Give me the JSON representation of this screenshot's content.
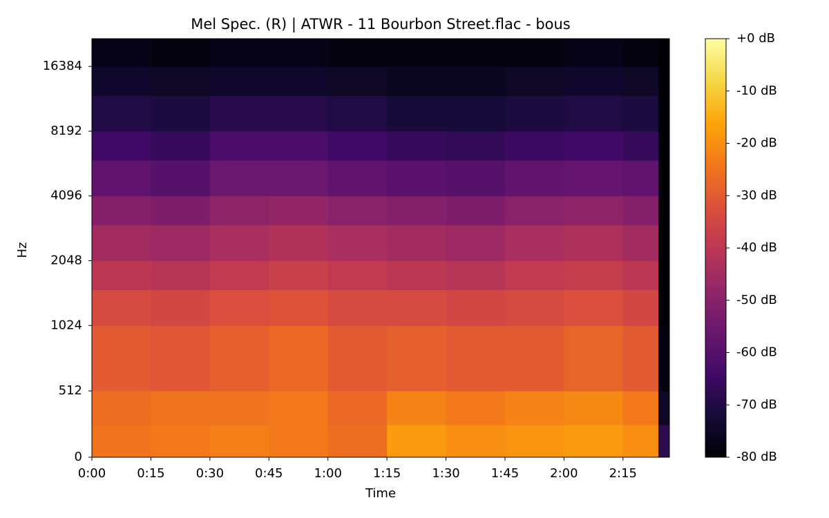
{
  "chart_data": {
    "type": "heatmap",
    "title": "Mel Spec. (R) | ATWR - 11 Bourbon Street.flac - bous",
    "x_label": "Time",
    "y_label": "Hz",
    "yscale": "symlog",
    "colormap": "inferno",
    "xlim": [
      0,
      146.8
    ],
    "xticks": [
      {
        "value": 0,
        "label": "0:00"
      },
      {
        "value": 15,
        "label": "0:15"
      },
      {
        "value": 30,
        "label": "0:30"
      },
      {
        "value": 45,
        "label": "0:45"
      },
      {
        "value": 60,
        "label": "1:00"
      },
      {
        "value": 75,
        "label": "1:15"
      },
      {
        "value": 90,
        "label": "1:30"
      },
      {
        "value": 105,
        "label": "1:45"
      },
      {
        "value": 120,
        "label": "2:00"
      },
      {
        "value": 135,
        "label": "2:15"
      }
    ],
    "ylim": [
      0,
      22050
    ],
    "yticks": [
      0,
      512,
      1024,
      2048,
      4096,
      8192,
      16384
    ],
    "clim": [
      -80,
      0
    ],
    "cticks": [
      {
        "value": 0,
        "label": "+0 dB"
      },
      {
        "value": -10,
        "label": "-10 dB"
      },
      {
        "value": -20,
        "label": "-20 dB"
      },
      {
        "value": -30,
        "label": "-30 dB"
      },
      {
        "value": -40,
        "label": "-40 dB"
      },
      {
        "value": -50,
        "label": "-50 dB"
      },
      {
        "value": -60,
        "label": "-60 dB"
      },
      {
        "value": -70,
        "label": "-70 dB"
      },
      {
        "value": -80,
        "label": "-80 dB"
      }
    ],
    "x_edges": [
      0,
      15,
      30,
      45,
      60,
      75,
      90,
      105,
      120,
      135,
      144,
      146.8
    ],
    "y_edges": [
      0,
      250,
      512,
      1024,
      1500,
      2048,
      3000,
      4096,
      6000,
      8192,
      12000,
      16384,
      22050
    ],
    "z": [
      [
        -25,
        -24,
        -23,
        -24,
        -26,
        -18,
        -20,
        -19,
        -18,
        -20,
        -68
      ],
      [
        -26,
        -25,
        -25,
        -24,
        -27,
        -22,
        -24,
        -22,
        -21,
        -24,
        -75
      ],
      [
        -30,
        -31,
        -29,
        -27,
        -30,
        -29,
        -30,
        -30,
        -28,
        -30,
        -78
      ],
      [
        -34,
        -35,
        -33,
        -32,
        -34,
        -34,
        -35,
        -34,
        -33,
        -35,
        -80
      ],
      [
        -40,
        -41,
        -39,
        -37,
        -39,
        -40,
        -41,
        -39,
        -38,
        -40,
        -80
      ],
      [
        -45,
        -46,
        -44,
        -42,
        -44,
        -45,
        -46,
        -44,
        -43,
        -45,
        -80
      ],
      [
        -51,
        -52,
        -49,
        -48,
        -50,
        -51,
        -52,
        -50,
        -49,
        -51,
        -80
      ],
      [
        -58,
        -60,
        -56,
        -56,
        -58,
        -59,
        -60,
        -58,
        -57,
        -58,
        -80
      ],
      [
        -64,
        -66,
        -62,
        -62,
        -64,
        -66,
        -67,
        -65,
        -64,
        -66,
        -80
      ],
      [
        -70,
        -71,
        -69,
        -69,
        -70,
        -72,
        -72,
        -71,
        -70,
        -71,
        -80
      ],
      [
        -74,
        -75,
        -74,
        -74,
        -75,
        -76,
        -76,
        -75,
        -74,
        -75,
        -80
      ],
      [
        -77,
        -78,
        -77,
        -77,
        -78,
        -78,
        -78,
        -78,
        -77,
        -78,
        -80
      ]
    ]
  }
}
